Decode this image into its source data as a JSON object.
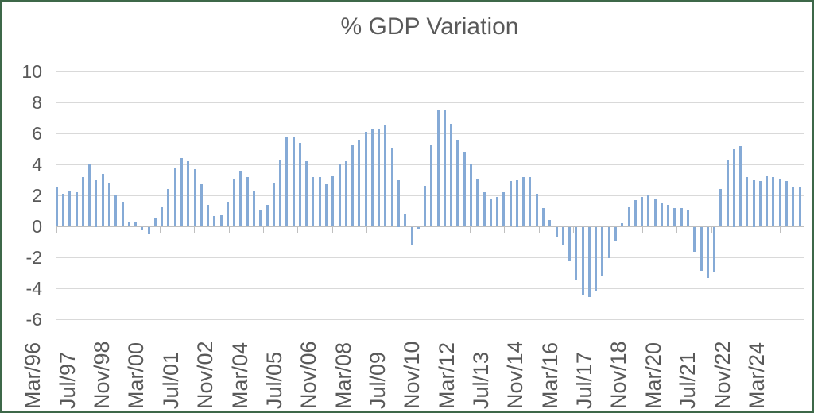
{
  "window": {
    "background": "#ffffff",
    "border_color": "#3d6849"
  },
  "chart_data": {
    "type": "bar",
    "title": "% GDP Variation",
    "series": [
      {
        "name": "% GDP Variation",
        "values": [
          2.5,
          2.1,
          2.3,
          2.2,
          3.2,
          4.0,
          3.0,
          3.4,
          2.8,
          2.0,
          1.6,
          0.3,
          0.3,
          -0.2,
          -0.4,
          0.5,
          1.3,
          2.4,
          3.8,
          4.4,
          4.2,
          3.7,
          2.7,
          1.4,
          0.65,
          0.7,
          1.6,
          3.1,
          3.6,
          3.2,
          2.3,
          1.1,
          1.4,
          2.8,
          4.3,
          5.8,
          5.8,
          5.4,
          4.2,
          3.2,
          3.2,
          2.7,
          3.3,
          4.0,
          4.2,
          5.3,
          5.6,
          6.1,
          6.3,
          6.3,
          6.5,
          5.1,
          3.0,
          0.75,
          -1.2,
          -0.1,
          2.6,
          5.3,
          7.5,
          7.5,
          6.6,
          5.6,
          4.8,
          4.0,
          3.1,
          2.2,
          1.8,
          1.9,
          2.2,
          2.9,
          3.0,
          3.2,
          3.2,
          2.1,
          1.2,
          0.4,
          -0.6,
          -1.2,
          -2.2,
          -3.4,
          -4.4,
          -4.5,
          -4.1,
          -3.2,
          -2.0,
          -0.85,
          0.2,
          1.3,
          1.7,
          1.9,
          2.0,
          1.8,
          1.5,
          1.4,
          1.2,
          1.2,
          1.1,
          -1.6,
          -2.8,
          -3.3,
          -2.9,
          2.4,
          4.3,
          5.0,
          5.2,
          3.2,
          3.0,
          2.9,
          3.3,
          3.2,
          3.1,
          2.9,
          2.5,
          2.5
        ]
      }
    ],
    "x_tick_labels": [
      "Mar/96",
      "Jul/97",
      "Nov/98",
      "Mar/00",
      "Jul/01",
      "Nov/02",
      "Mar/04",
      "Jul/05",
      "Nov/06",
      "Mar/08",
      "Jul/09",
      "Nov/10",
      "Mar/12",
      "Jul/13",
      "Nov/14",
      "Mar/16",
      "Jul/17",
      "Nov/18",
      "Mar/20",
      "Jul/21",
      "Nov/22",
      "Mar/24"
    ],
    "y_ticks": [
      10,
      8,
      6,
      4,
      2,
      0,
      -2,
      -4,
      -6
    ],
    "ylim": [
      -6,
      10
    ],
    "grid": "horizontal",
    "legend": "none",
    "bar_color": "#85aad6",
    "gridline_color": "#d9d9d9",
    "axis_color": "#bfbfbf",
    "text_color": "#595959"
  }
}
